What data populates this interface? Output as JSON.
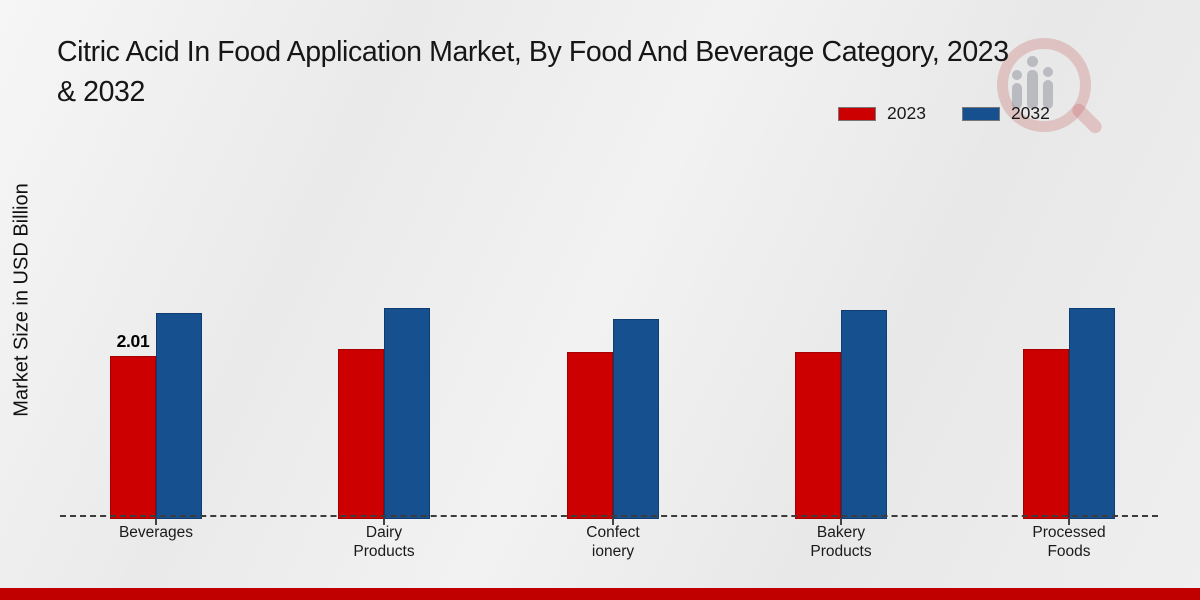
{
  "header": {
    "title_line1": "Citric Acid In Food Application Market, By Food And Beverage Category, 2023",
    "title_line2": "& 2032"
  },
  "legend": {
    "items": [
      {
        "label": "2023",
        "color": "#cc0000"
      },
      {
        "label": "2032",
        "color": "#17508f"
      }
    ]
  },
  "watermark": {
    "icon": "magnifier-bar-chart-logo"
  },
  "footer": {
    "accent_color": "#c00000"
  },
  "chart_data": {
    "type": "bar",
    "title": "Citric Acid In Food Application Market, By Food And Beverage Category, 2023 & 2032",
    "ylabel": "Market Size in USD Billion",
    "unit": "USD Billion",
    "categories": [
      "Beverages",
      "Dairy Products",
      "Confectionery",
      "Bakery Products",
      "Processed Foods"
    ],
    "category_display": [
      "Beverages",
      "Dairy\nProducts",
      "Confect\nionery",
      "Bakery\nProducts",
      "Processed\nFoods"
    ],
    "series": [
      {
        "name": "2023",
        "color": "#cc0000",
        "border_color": "#a50000",
        "values": [
          2.01,
          2.1,
          2.06,
          2.06,
          2.1
        ]
      },
      {
        "name": "2032",
        "color": "#17508f",
        "border_color": "#0d3d72",
        "values": [
          2.54,
          2.6,
          2.47,
          2.58,
          2.6
        ]
      }
    ],
    "bar_labels": [
      {
        "series_index": 0,
        "category_index": 0,
        "text": "2.01"
      }
    ],
    "ylim": [
      0,
      3.0
    ],
    "grid": false,
    "baseline_style": "dashed",
    "legend_position": "top-right",
    "note": "Only the 2.01 value is labeled on the chart; other values estimated from bar heights."
  }
}
